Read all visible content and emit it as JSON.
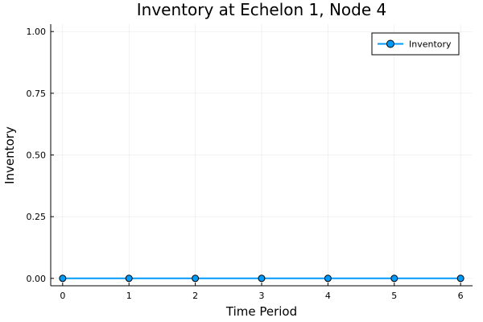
{
  "chart_data": {
    "type": "line",
    "title": "Inventory at Echelon 1, Node 4",
    "xlabel": "Time Period",
    "ylabel": "Inventory",
    "x": [
      0,
      1,
      2,
      3,
      4,
      5,
      6
    ],
    "series": [
      {
        "name": "Inventory",
        "values": [
          0,
          0,
          0,
          0,
          0,
          0,
          0
        ],
        "color": "#009af9",
        "marker": "circle"
      }
    ],
    "xlim": [
      -0.18,
      6.18
    ],
    "ylim": [
      -0.03,
      1.03
    ],
    "xticks": [
      "0",
      "1",
      "2",
      "3",
      "4",
      "5",
      "6"
    ],
    "yticks": [
      "0.00",
      "0.25",
      "0.50",
      "0.75",
      "1.00"
    ],
    "grid": true,
    "legend_position": "top-right"
  }
}
